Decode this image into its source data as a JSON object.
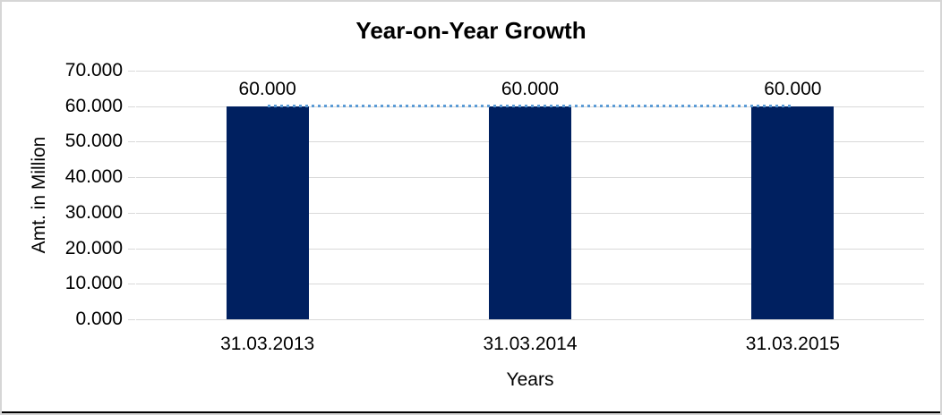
{
  "window": {
    "background_color": "#ffffff",
    "frame_border_color": "#d6d6d6",
    "bottom_strip_color": "#000000"
  },
  "chart_data": {
    "type": "bar",
    "title": "Year-on-Year Growth",
    "xlabel": "Years",
    "ylabel": "Amt. in Million",
    "categories": [
      "31.03.2013",
      "31.03.2014",
      "31.03.2015"
    ],
    "series": [
      {
        "name": "amount-bars",
        "type": "bar",
        "values": [
          60,
          60,
          60
        ],
        "data_labels": [
          "60.000",
          "60.000",
          "60.000"
        ],
        "color": "#002060"
      },
      {
        "name": "trend-line",
        "type": "line",
        "style": "dotted",
        "values": [
          60,
          60,
          60
        ],
        "color": "#5b9bd5"
      }
    ],
    "ylim": [
      0,
      70
    ],
    "y_tick_step": 10,
    "y_tick_labels": [
      "0.000",
      "10.000",
      "20.000",
      "30.000",
      "40.000",
      "50.000",
      "60.000",
      "70.000"
    ],
    "grid": true,
    "gridline_color": "#d9d9d9",
    "text_color": "#000000",
    "legend": "none"
  }
}
